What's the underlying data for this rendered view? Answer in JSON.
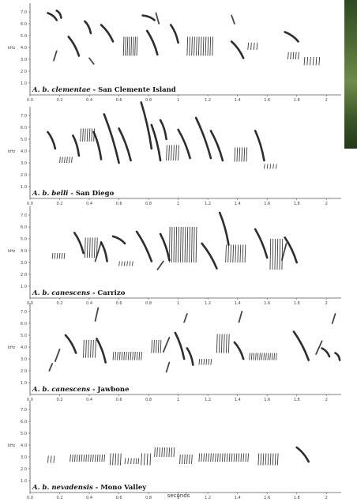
{
  "figure": {
    "x_axis_label": "seconds",
    "y_axis_unit": "kHz"
  },
  "panels": [
    {
      "species": "A. b. clementae",
      "location": "San Clemente Island"
    },
    {
      "species": "A. b. belli",
      "location": "San Diego"
    },
    {
      "species": "A. b. canescens",
      "location": "Carrizo"
    },
    {
      "species": "A. b. canescens",
      "location": "Jawbone"
    },
    {
      "species": "A. b. nevadensis",
      "location": "Mono Valley"
    }
  ],
  "chart_data": {
    "type": "spectrogram",
    "xlabel": "seconds",
    "ylabel": "kHz",
    "xlim": [
      0,
      2.1
    ],
    "ylim": [
      0,
      8
    ],
    "x_ticks": [
      "0.0",
      "0.2",
      "0.4",
      "0.6",
      "0.8",
      "1",
      "1.2",
      "1.4",
      "1.6",
      "1.8",
      "2"
    ],
    "y_ticks": [
      "1.0",
      "2.0",
      "3.0",
      "4.0",
      "5.0",
      "6.0",
      "7.0"
    ],
    "panels": [
      {
        "title": "A. b. clementae - San Clemente Island",
        "notes": [
          {
            "shape": "down",
            "t0": 0.12,
            "t1": 0.18,
            "f0": 6.9,
            "f1": 6.3
          },
          {
            "shape": "down",
            "t0": 0.18,
            "t1": 0.21,
            "f0": 7.1,
            "f1": 6.5
          },
          {
            "shape": "tick",
            "t0": 0.16,
            "t1": 0.18,
            "f0": 2.9,
            "f1": 3.7
          },
          {
            "shape": "down",
            "t0": 0.26,
            "t1": 0.33,
            "f0": 4.9,
            "f1": 3.3
          },
          {
            "shape": "down",
            "t0": 0.37,
            "t1": 0.41,
            "f0": 6.2,
            "f1": 5.2
          },
          {
            "shape": "tick",
            "t0": 0.4,
            "t1": 0.43,
            "f0": 3.1,
            "f1": 2.6
          },
          {
            "shape": "down",
            "t0": 0.48,
            "t1": 0.56,
            "f0": 5.9,
            "f1": 4.5
          },
          {
            "shape": "trill",
            "t0": 0.63,
            "t1": 0.72,
            "f0": 3.3,
            "f1": 4.9,
            "n": 8
          },
          {
            "shape": "down",
            "t0": 0.76,
            "t1": 0.84,
            "f0": 6.7,
            "f1": 6.3
          },
          {
            "shape": "down",
            "t0": 0.79,
            "t1": 0.86,
            "f0": 5.4,
            "f1": 3.4
          },
          {
            "shape": "tick",
            "t0": 0.85,
            "t1": 0.87,
            "f0": 6.9,
            "f1": 6.0
          },
          {
            "shape": "down",
            "t0": 0.95,
            "t1": 1.0,
            "f0": 5.9,
            "f1": 4.4
          },
          {
            "shape": "trill",
            "t0": 1.06,
            "t1": 1.23,
            "f0": 3.3,
            "f1": 4.9,
            "n": 12
          },
          {
            "shape": "tick",
            "t0": 1.36,
            "t1": 1.38,
            "f0": 6.7,
            "f1": 6.0
          },
          {
            "shape": "down",
            "t0": 1.36,
            "t1": 1.44,
            "f0": 4.5,
            "f1": 3.1
          },
          {
            "shape": "trill",
            "t0": 1.47,
            "t1": 1.53,
            "f0": 3.8,
            "f1": 4.4,
            "n": 4
          },
          {
            "shape": "down",
            "t0": 1.72,
            "t1": 1.81,
            "f0": 5.3,
            "f1": 4.5
          },
          {
            "shape": "trill",
            "t0": 1.74,
            "t1": 1.81,
            "f0": 3.0,
            "f1": 3.6,
            "n": 5
          },
          {
            "shape": "trill",
            "t0": 1.85,
            "t1": 1.95,
            "f0": 2.5,
            "f1": 3.2,
            "n": 6
          }
        ]
      },
      {
        "title": "A. b. belli - San Diego",
        "notes": [
          {
            "shape": "down",
            "t0": 0.12,
            "t1": 0.17,
            "f0": 5.6,
            "f1": 4.2
          },
          {
            "shape": "trill",
            "t0": 0.2,
            "t1": 0.28,
            "f0": 3.0,
            "f1": 3.5,
            "n": 6
          },
          {
            "shape": "down",
            "t0": 0.29,
            "t1": 0.33,
            "f0": 5.3,
            "f1": 3.6
          },
          {
            "shape": "trill",
            "t0": 0.34,
            "t1": 0.43,
            "f0": 4.8,
            "f1": 5.9,
            "n": 7
          },
          {
            "shape": "down",
            "t0": 0.43,
            "t1": 0.48,
            "f0": 5.6,
            "f1": 3.3
          },
          {
            "shape": "down",
            "t0": 0.5,
            "t1": 0.6,
            "f0": 7.1,
            "f1": 3.0
          },
          {
            "shape": "down",
            "t0": 0.6,
            "t1": 0.68,
            "f0": 5.9,
            "f1": 3.2
          },
          {
            "shape": "down",
            "t0": 0.75,
            "t1": 0.82,
            "f0": 8.1,
            "f1": 4.2
          },
          {
            "shape": "down",
            "t0": 0.82,
            "t1": 0.88,
            "f0": 6.2,
            "f1": 3.2
          },
          {
            "shape": "down",
            "t0": 0.88,
            "t1": 0.92,
            "f0": 6.6,
            "f1": 5.0
          },
          {
            "shape": "trill",
            "t0": 0.92,
            "t1": 1.0,
            "f0": 3.2,
            "f1": 4.5,
            "n": 6
          },
          {
            "shape": "down",
            "t0": 1.0,
            "t1": 1.08,
            "f0": 5.8,
            "f1": 3.4
          },
          {
            "shape": "down",
            "t0": 1.12,
            "t1": 1.22,
            "f0": 6.8,
            "f1": 3.4
          },
          {
            "shape": "down",
            "t0": 1.22,
            "t1": 1.3,
            "f0": 5.7,
            "f1": 3.2
          },
          {
            "shape": "trill",
            "t0": 1.38,
            "t1": 1.46,
            "f0": 3.1,
            "f1": 4.3,
            "n": 6
          },
          {
            "shape": "down",
            "t0": 1.52,
            "t1": 1.58,
            "f0": 5.7,
            "f1": 3.2
          },
          {
            "shape": "trill",
            "t0": 1.58,
            "t1": 1.66,
            "f0": 2.5,
            "f1": 2.9,
            "n": 5
          }
        ]
      },
      {
        "title": "A. b. canescens - Carrizo",
        "notes": [
          {
            "shape": "trill",
            "t0": 0.15,
            "t1": 0.23,
            "f0": 3.3,
            "f1": 3.8,
            "n": 6
          },
          {
            "shape": "down",
            "t0": 0.3,
            "t1": 0.36,
            "f0": 5.5,
            "f1": 3.8
          },
          {
            "shape": "trill",
            "t0": 0.37,
            "t1": 0.45,
            "f0": 3.4,
            "f1": 5.1,
            "n": 6
          },
          {
            "shape": "tick",
            "t0": 0.44,
            "t1": 0.48,
            "f0": 3.1,
            "f1": 4.7
          },
          {
            "shape": "down",
            "t0": 0.48,
            "t1": 0.52,
            "f0": 4.7,
            "f1": 3.1
          },
          {
            "shape": "down",
            "t0": 0.56,
            "t1": 0.64,
            "f0": 5.2,
            "f1": 4.6
          },
          {
            "shape": "trill",
            "t0": 0.6,
            "t1": 0.69,
            "f0": 2.7,
            "f1": 3.1,
            "n": 6
          },
          {
            "shape": "down",
            "t0": 0.72,
            "t1": 0.82,
            "f0": 5.6,
            "f1": 3.1
          },
          {
            "shape": "tick",
            "t0": 0.86,
            "t1": 0.9,
            "f0": 2.4,
            "f1": 3.1
          },
          {
            "shape": "down",
            "t0": 0.88,
            "t1": 0.94,
            "f0": 5.4,
            "f1": 3.2
          },
          {
            "shape": "trill",
            "t0": 0.94,
            "t1": 1.12,
            "f0": 3.0,
            "f1": 6.0,
            "n": 13
          },
          {
            "shape": "down",
            "t0": 1.16,
            "t1": 1.26,
            "f0": 4.6,
            "f1": 2.5
          },
          {
            "shape": "down",
            "t0": 1.28,
            "t1": 1.34,
            "f0": 7.2,
            "f1": 4.5
          },
          {
            "shape": "trill",
            "t0": 1.32,
            "t1": 1.45,
            "f0": 3.0,
            "f1": 4.5,
            "n": 9
          },
          {
            "shape": "down",
            "t0": 1.52,
            "t1": 1.6,
            "f0": 5.8,
            "f1": 3.4
          },
          {
            "shape": "trill",
            "t0": 1.62,
            "t1": 1.7,
            "f0": 2.4,
            "f1": 5.0,
            "n": 6
          },
          {
            "shape": "tick",
            "t0": 1.7,
            "t1": 1.73,
            "f0": 3.2,
            "f1": 4.6
          },
          {
            "shape": "down",
            "t0": 1.72,
            "t1": 1.8,
            "f0": 5.1,
            "f1": 3.0
          }
        ]
      },
      {
        "title": "A. b. canescens - Jawbone",
        "notes": [
          {
            "shape": "tick",
            "t0": 0.13,
            "t1": 0.15,
            "f0": 2.0,
            "f1": 2.6
          },
          {
            "shape": "tick",
            "t0": 0.17,
            "t1": 0.2,
            "f0": 2.8,
            "f1": 3.8
          },
          {
            "shape": "down",
            "t0": 0.24,
            "t1": 0.31,
            "f0": 5.0,
            "f1": 3.5
          },
          {
            "shape": "trill",
            "t0": 0.36,
            "t1": 0.44,
            "f0": 3.1,
            "f1": 4.6,
            "n": 6
          },
          {
            "shape": "tick",
            "t0": 0.44,
            "t1": 0.46,
            "f0": 6.2,
            "f1": 7.3
          },
          {
            "shape": "down",
            "t0": 0.45,
            "t1": 0.51,
            "f0": 4.7,
            "f1": 2.7
          },
          {
            "shape": "trill",
            "t0": 0.56,
            "t1": 0.75,
            "f0": 2.9,
            "f1": 3.6,
            "n": 14
          },
          {
            "shape": "trill",
            "t0": 0.82,
            "t1": 0.88,
            "f0": 3.5,
            "f1": 4.6,
            "n": 5
          },
          {
            "shape": "tick",
            "t0": 0.9,
            "t1": 0.94,
            "f0": 3.6,
            "f1": 4.8
          },
          {
            "shape": "tick",
            "t0": 0.92,
            "t1": 0.94,
            "f0": 1.9,
            "f1": 2.7
          },
          {
            "shape": "down",
            "t0": 0.98,
            "t1": 1.04,
            "f0": 5.2,
            "f1": 3.0
          },
          {
            "shape": "tick",
            "t0": 1.04,
            "t1": 1.06,
            "f0": 6.1,
            "f1": 6.8
          },
          {
            "shape": "down",
            "t0": 1.06,
            "t1": 1.1,
            "f0": 3.9,
            "f1": 2.5
          },
          {
            "shape": "trill",
            "t0": 1.14,
            "t1": 1.22,
            "f0": 2.5,
            "f1": 3.0,
            "n": 6
          },
          {
            "shape": "trill",
            "t0": 1.26,
            "t1": 1.34,
            "f0": 3.5,
            "f1": 5.1,
            "n": 6
          },
          {
            "shape": "down",
            "t0": 1.38,
            "t1": 1.44,
            "f0": 4.4,
            "f1": 3.0
          },
          {
            "shape": "tick",
            "t0": 1.41,
            "t1": 1.43,
            "f0": 6.1,
            "f1": 7.0
          },
          {
            "shape": "trill",
            "t0": 1.48,
            "t1": 1.66,
            "f0": 2.9,
            "f1": 3.5,
            "n": 14
          },
          {
            "shape": "down",
            "t0": 1.78,
            "t1": 1.88,
            "f0": 5.3,
            "f1": 2.9
          },
          {
            "shape": "tick",
            "t0": 1.93,
            "t1": 1.97,
            "f0": 3.4,
            "f1": 4.5
          },
          {
            "shape": "down",
            "t0": 1.97,
            "t1": 2.02,
            "f0": 3.9,
            "f1": 3.2
          },
          {
            "shape": "tick",
            "t0": 2.04,
            "t1": 2.06,
            "f0": 6.0,
            "f1": 6.8
          },
          {
            "shape": "down",
            "t0": 2.06,
            "t1": 2.09,
            "f0": 3.5,
            "f1": 2.9
          }
        ]
      },
      {
        "title": "A. b. nevadensis - Mono Valley",
        "notes": [
          {
            "shape": "trill",
            "t0": 0.12,
            "t1": 0.16,
            "f0": 2.5,
            "f1": 3.1,
            "n": 3
          },
          {
            "shape": "trill",
            "t0": 0.27,
            "t1": 0.5,
            "f0": 2.6,
            "f1": 3.2,
            "n": 16
          },
          {
            "shape": "trill",
            "t0": 0.54,
            "t1": 0.61,
            "f0": 2.3,
            "f1": 3.3,
            "n": 5
          },
          {
            "shape": "trill",
            "t0": 0.64,
            "t1": 0.68,
            "f0": 2.4,
            "f1": 2.9,
            "n": 3
          },
          {
            "shape": "trill",
            "t0": 0.7,
            "t1": 0.73,
            "f0": 2.4,
            "f1": 2.9,
            "n": 3
          },
          {
            "shape": "trill",
            "t0": 0.75,
            "t1": 0.81,
            "f0": 2.3,
            "f1": 3.3,
            "n": 4
          },
          {
            "shape": "trill",
            "t0": 0.84,
            "t1": 0.97,
            "f0": 3.0,
            "f1": 3.8,
            "n": 9
          },
          {
            "shape": "trill",
            "t0": 1.01,
            "t1": 1.09,
            "f0": 2.4,
            "f1": 3.2,
            "n": 6
          },
          {
            "shape": "trill",
            "t0": 1.14,
            "t1": 1.47,
            "f0": 2.6,
            "f1": 3.3,
            "n": 22
          },
          {
            "shape": "trill",
            "t0": 1.54,
            "t1": 1.67,
            "f0": 2.3,
            "f1": 3.3,
            "n": 9
          },
          {
            "shape": "down",
            "t0": 1.8,
            "t1": 1.88,
            "f0": 3.8,
            "f1": 2.6
          }
        ]
      }
    ]
  }
}
